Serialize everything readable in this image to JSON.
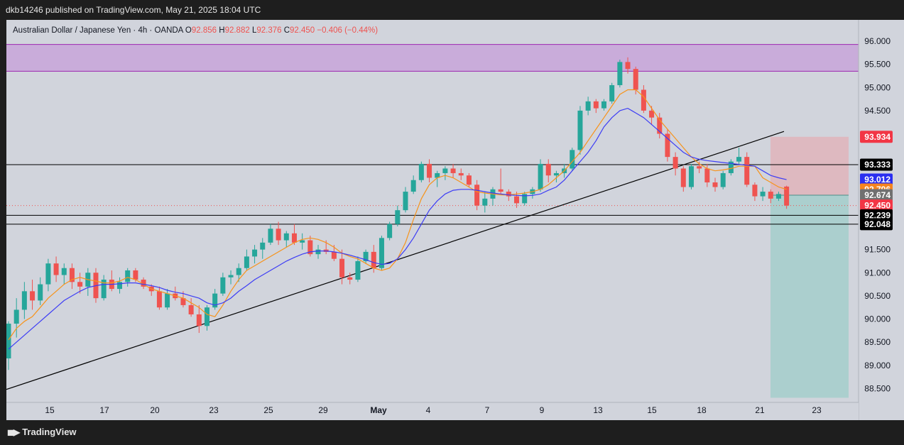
{
  "publisher_text": "dkb14246 published on TradingView.com, May 21, 2025 18:04 UTC",
  "header": {
    "symbol": "Australian Dollar / Japanese Yen · 4h · OANDA",
    "o_label": "O",
    "o_value": "92.856",
    "h_label": "H",
    "h_value": "92.882",
    "l_label": "L",
    "l_value": "92.376",
    "c_label": "C",
    "c_value": "92.450",
    "change": "−0.406 (−0.44%)"
  },
  "logo_text": "TradingView",
  "colors": {
    "up": "#26a69a",
    "down": "#ef5350",
    "ema_fast": "#f7931a",
    "ema_slow": "#3d3df5",
    "zone": "#c8a7d9",
    "target": "#a9cfcc",
    "stop": "#deb7be",
    "background": "#d1d4dc"
  },
  "chart_data": {
    "type": "candlestick",
    "timeframe": "4h",
    "y_ticks": [
      "96.000",
      "95.500",
      "95.000",
      "94.500",
      "91.500",
      "91.000",
      "90.500",
      "90.000",
      "89.500",
      "89.000",
      "88.500"
    ],
    "x_ticks": [
      "15",
      "17",
      "20",
      "23",
      "25",
      "29",
      "May",
      "4",
      "7",
      "9",
      "13",
      "15",
      "18",
      "21",
      "23"
    ],
    "ylim": [
      88.15,
      96.25
    ],
    "price_labels": [
      {
        "value": 93.934,
        "text": "93.934",
        "color": "#f23645",
        "text_color": "#ffffff"
      },
      {
        "value": 93.333,
        "text": "93.333",
        "color": "#000000",
        "text_color": "#ffffff"
      },
      {
        "value": 93.012,
        "text": "93.012",
        "color": "#2a2ef0",
        "text_color": "#ffffff"
      },
      {
        "value": 92.796,
        "text": "92.796",
        "color": "#f5841f",
        "text_color": "#ffffff"
      },
      {
        "value": 92.674,
        "text": "92.674",
        "color": "#707070",
        "text_color": "#ffffff"
      },
      {
        "value": 92.45,
        "text": "92.450",
        "color": "#f23645",
        "text_color": "#ffffff"
      },
      {
        "value": 92.239,
        "text": "92.239",
        "color": "#000000",
        "text_color": "#ffffff"
      },
      {
        "value": 92.048,
        "text": "92.048",
        "color": "#000000",
        "text_color": "#ffffff"
      }
    ],
    "resistance_zone": {
      "top": 95.93,
      "bottom": 95.35
    },
    "horizontal_lines": [
      93.333,
      92.239,
      92.048
    ],
    "last_price": 92.45,
    "trendline": {
      "from_x": "Apr 11",
      "from_y": 88.48,
      "to_x": "May 22",
      "to_y": 94.05
    },
    "trade": {
      "entry": 92.674,
      "stop": 93.934,
      "target": 88.3
    },
    "series": [
      {
        "name": "EMA fast",
        "values": [
          89.55,
          89.8,
          89.95,
          90.05,
          90.25,
          90.45,
          90.6,
          90.75,
          90.85,
          90.9,
          90.85,
          90.82,
          90.78,
          90.78,
          90.82,
          90.9,
          90.85,
          90.75,
          90.65,
          90.6,
          90.55,
          90.5,
          90.45,
          90.35,
          90.25,
          90.1,
          90.05,
          90.3,
          90.6,
          90.85,
          91.05,
          91.15,
          91.25,
          91.35,
          91.45,
          91.55,
          91.65,
          91.72,
          91.75,
          91.72,
          91.65,
          91.55,
          91.42,
          91.35,
          91.3,
          91.2,
          91.1,
          91.05,
          91.1,
          91.3,
          91.65,
          92.15,
          92.6,
          92.9,
          93.05,
          93.1,
          93.05,
          92.95,
          92.85,
          92.75,
          92.72,
          92.7,
          92.68,
          92.68,
          92.7,
          92.72,
          92.75,
          92.8,
          92.9,
          93.05,
          93.2,
          93.4,
          93.6,
          93.85,
          94.1,
          94.35,
          94.6,
          94.85,
          94.95,
          94.95,
          94.8,
          94.55,
          94.3,
          94.1,
          93.9,
          93.7,
          93.5,
          93.35,
          93.25,
          93.2,
          93.22,
          93.25,
          93.3,
          93.3,
          93.3,
          93.05,
          92.95,
          92.85,
          92.8
        ]
      },
      {
        "name": "EMA slow",
        "values": [
          89.35,
          89.5,
          89.65,
          89.8,
          89.95,
          90.1,
          90.25,
          90.4,
          90.5,
          90.6,
          90.68,
          90.72,
          90.75,
          90.75,
          90.76,
          90.78,
          90.78,
          90.75,
          90.72,
          90.68,
          90.62,
          90.58,
          90.55,
          90.5,
          90.45,
          90.35,
          90.3,
          90.35,
          90.45,
          90.6,
          90.72,
          90.85,
          90.95,
          91.05,
          91.15,
          91.25,
          91.33,
          91.4,
          91.45,
          91.47,
          91.47,
          91.45,
          91.42,
          91.38,
          91.33,
          91.28,
          91.22,
          91.18,
          91.2,
          91.3,
          91.5,
          91.75,
          92.05,
          92.35,
          92.55,
          92.7,
          92.78,
          92.8,
          92.8,
          92.78,
          92.75,
          92.72,
          92.7,
          92.68,
          92.67,
          92.66,
          92.67,
          92.7,
          92.78,
          92.85,
          93.0,
          93.2,
          93.4,
          93.6,
          93.85,
          94.15,
          94.35,
          94.5,
          94.55,
          94.45,
          94.35,
          94.2,
          94.05,
          93.9,
          93.75,
          93.6,
          93.5,
          93.45,
          93.42,
          93.4,
          93.38,
          93.36,
          93.34,
          93.32,
          93.3,
          93.2,
          93.1,
          93.05,
          93.01
        ]
      }
    ],
    "candles": [
      [
        89.15,
        89.95,
        88.9,
        89.9
      ],
      [
        89.9,
        90.45,
        89.6,
        90.2
      ],
      [
        90.2,
        90.8,
        90.0,
        90.6
      ],
      [
        90.6,
        90.85,
        90.2,
        90.4
      ],
      [
        90.4,
        90.9,
        90.3,
        90.75
      ],
      [
        90.75,
        91.3,
        90.6,
        91.2
      ],
      [
        91.2,
        91.35,
        90.8,
        90.95
      ],
      [
        90.95,
        91.2,
        90.75,
        91.1
      ],
      [
        91.1,
        91.2,
        90.65,
        90.8
      ],
      [
        90.8,
        91.0,
        90.55,
        90.7
      ],
      [
        90.7,
        91.1,
        90.5,
        91.0
      ],
      [
        91.0,
        91.1,
        90.35,
        90.45
      ],
      [
        90.45,
        90.95,
        90.4,
        90.85
      ],
      [
        90.85,
        91.05,
        90.6,
        90.65
      ],
      [
        90.65,
        90.9,
        90.55,
        90.8
      ],
      [
        90.8,
        91.1,
        90.7,
        91.05
      ],
      [
        91.05,
        91.1,
        90.8,
        90.85
      ],
      [
        90.85,
        90.9,
        90.65,
        90.7
      ],
      [
        90.7,
        90.75,
        90.5,
        90.6
      ],
      [
        90.6,
        90.7,
        90.2,
        90.25
      ],
      [
        90.25,
        90.65,
        90.2,
        90.55
      ],
      [
        90.55,
        90.7,
        90.4,
        90.45
      ],
      [
        90.45,
        90.6,
        90.25,
        90.3
      ],
      [
        90.3,
        90.45,
        90.05,
        90.1
      ],
      [
        90.1,
        90.3,
        89.7,
        89.85
      ],
      [
        89.85,
        90.3,
        89.75,
        90.25
      ],
      [
        90.25,
        90.65,
        90.2,
        90.55
      ],
      [
        90.55,
        91.0,
        90.5,
        90.9
      ],
      [
        90.9,
        91.05,
        90.75,
        90.95
      ],
      [
        90.95,
        91.2,
        90.8,
        91.1
      ],
      [
        91.1,
        91.5,
        91.05,
        91.35
      ],
      [
        91.35,
        91.6,
        91.2,
        91.5
      ],
      [
        91.5,
        91.75,
        91.3,
        91.65
      ],
      [
        91.65,
        92.05,
        91.6,
        91.95
      ],
      [
        91.95,
        92.1,
        91.6,
        91.7
      ],
      [
        91.7,
        91.9,
        91.55,
        91.85
      ],
      [
        91.85,
        92.05,
        91.6,
        91.65
      ],
      [
        91.65,
        91.85,
        91.5,
        91.7
      ],
      [
        91.7,
        91.8,
        91.35,
        91.4
      ],
      [
        91.4,
        91.6,
        91.3,
        91.5
      ],
      [
        91.5,
        91.7,
        91.4,
        91.45
      ],
      [
        91.45,
        91.6,
        91.25,
        91.3
      ],
      [
        91.3,
        91.5,
        90.75,
        90.9
      ],
      [
        90.9,
        91.0,
        90.75,
        90.85
      ],
      [
        90.85,
        91.35,
        90.8,
        91.25
      ],
      [
        91.25,
        91.5,
        91.2,
        91.45
      ],
      [
        91.45,
        91.6,
        91.0,
        91.1
      ],
      [
        91.1,
        91.8,
        91.05,
        91.75
      ],
      [
        91.75,
        92.1,
        91.7,
        92.05
      ],
      [
        92.05,
        92.45,
        92.0,
        92.35
      ],
      [
        92.35,
        92.85,
        92.3,
        92.75
      ],
      [
        92.75,
        93.1,
        92.7,
        93.0
      ],
      [
        93.0,
        93.4,
        92.95,
        93.35
      ],
      [
        93.35,
        93.45,
        92.95,
        93.05
      ],
      [
        93.05,
        93.2,
        92.85,
        93.15
      ],
      [
        93.15,
        93.3,
        93.0,
        93.25
      ],
      [
        93.25,
        93.35,
        93.05,
        93.15
      ],
      [
        93.15,
        93.25,
        93.0,
        93.1
      ],
      [
        93.1,
        93.15,
        92.85,
        92.9
      ],
      [
        92.9,
        93.0,
        92.35,
        92.45
      ],
      [
        92.45,
        92.75,
        92.3,
        92.6
      ],
      [
        92.6,
        92.85,
        92.45,
        92.8
      ],
      [
        92.8,
        93.25,
        92.7,
        92.75
      ],
      [
        92.75,
        92.8,
        92.55,
        92.65
      ],
      [
        92.65,
        92.75,
        92.4,
        92.5
      ],
      [
        92.5,
        92.75,
        92.45,
        92.7
      ],
      [
        92.7,
        92.85,
        92.6,
        92.8
      ],
      [
        92.8,
        93.45,
        92.75,
        93.35
      ],
      [
        93.35,
        93.45,
        92.95,
        93.1
      ],
      [
        93.1,
        93.2,
        92.95,
        93.15
      ],
      [
        93.15,
        93.35,
        93.05,
        93.25
      ],
      [
        93.25,
        93.7,
        93.2,
        93.65
      ],
      [
        93.65,
        94.6,
        93.55,
        94.5
      ],
      [
        94.5,
        94.8,
        94.4,
        94.7
      ],
      [
        94.7,
        94.75,
        94.45,
        94.55
      ],
      [
        94.55,
        94.75,
        94.5,
        94.7
      ],
      [
        94.7,
        95.1,
        94.65,
        95.05
      ],
      [
        95.05,
        95.6,
        95.0,
        95.55
      ],
      [
        95.55,
        95.65,
        95.3,
        95.4
      ],
      [
        95.4,
        95.45,
        94.85,
        94.95
      ],
      [
        94.95,
        95.05,
        94.45,
        94.5
      ],
      [
        94.5,
        94.6,
        94.2,
        94.35
      ],
      [
        94.35,
        94.45,
        93.9,
        94.0
      ],
      [
        94.0,
        94.1,
        93.4,
        93.5
      ],
      [
        93.5,
        93.6,
        93.1,
        93.25
      ],
      [
        93.25,
        93.3,
        92.75,
        92.85
      ],
      [
        92.85,
        93.35,
        92.8,
        93.3
      ],
      [
        93.3,
        93.4,
        93.15,
        93.25
      ],
      [
        93.25,
        93.35,
        92.85,
        92.95
      ],
      [
        92.95,
        93.05,
        92.75,
        92.85
      ],
      [
        92.85,
        93.2,
        92.8,
        93.15
      ],
      [
        93.15,
        93.45,
        93.1,
        93.4
      ],
      [
        93.4,
        93.7,
        93.35,
        93.5
      ],
      [
        93.5,
        93.6,
        92.85,
        92.9
      ],
      [
        92.9,
        92.95,
        92.55,
        92.65
      ],
      [
        92.65,
        92.85,
        92.55,
        92.75
      ],
      [
        92.75,
        92.8,
        92.5,
        92.6
      ],
      [
        92.6,
        92.75,
        92.55,
        92.7
      ],
      [
        92.86,
        92.88,
        92.38,
        92.45
      ]
    ]
  }
}
